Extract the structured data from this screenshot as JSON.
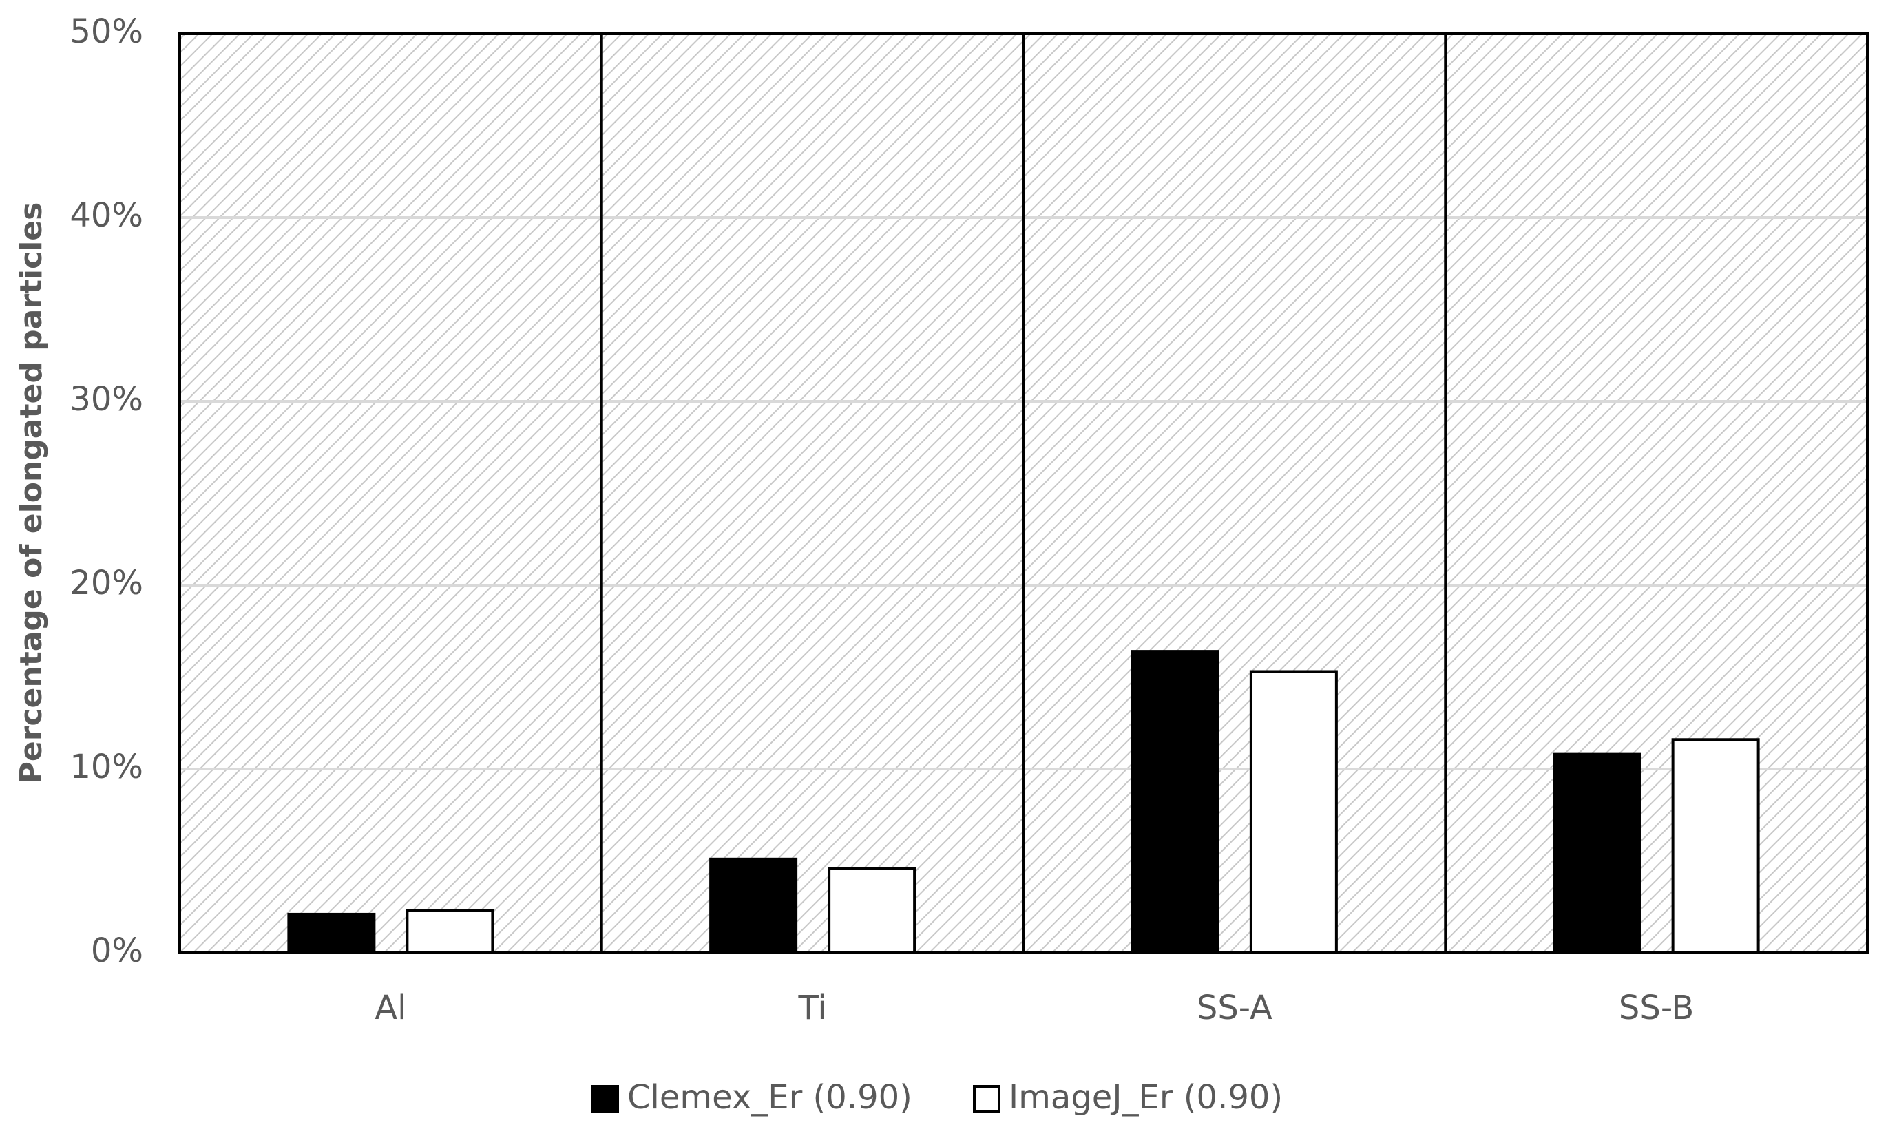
{
  "chart_data": {
    "type": "bar",
    "y_label": "Percentage of elongated particles",
    "categories": [
      "Al",
      "Ti",
      "SS-A",
      "SS-B"
    ],
    "series": [
      {
        "name": "Clemex_Er (0.90)",
        "color": "#000000",
        "values": [
          2.1,
          5.1,
          16.4,
          10.8
        ]
      },
      {
        "name": "ImageJ_Er (0.90)",
        "color": "#ffffff",
        "values": [
          2.3,
          4.6,
          15.3,
          11.6
        ]
      }
    ],
    "ylim": [
      0,
      50
    ],
    "yticks": [
      {
        "value": 0,
        "label": "0%"
      },
      {
        "value": 10,
        "label": "10%"
      },
      {
        "value": 20,
        "label": "20%"
      },
      {
        "value": 30,
        "label": "30%"
      },
      {
        "value": 40,
        "label": "40%"
      },
      {
        "value": 50,
        "label": "50%"
      }
    ],
    "grid": true,
    "legend": "bottom"
  }
}
